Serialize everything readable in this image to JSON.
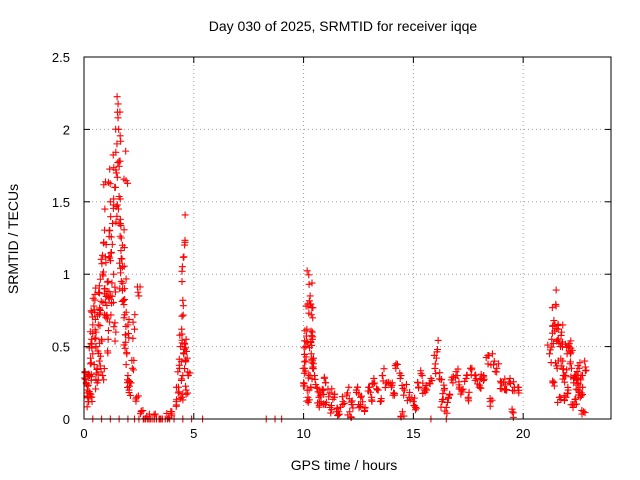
{
  "chart_data": {
    "type": "scatter",
    "title": "Day 030 of 2025, SRMTID for receiver iqqe",
    "xlabel": "GPS time / hours",
    "ylabel": "SRMTID / TECUs",
    "xlim": [
      0,
      24
    ],
    "ylim": [
      0,
      2.5
    ],
    "xticks": [
      0,
      5,
      10,
      15,
      20
    ],
    "yticks": [
      0,
      0.5,
      1,
      1.5,
      2,
      2.5
    ],
    "xtick_labels": [
      "0",
      "5",
      "10",
      "15",
      "20"
    ],
    "ytick_labels": [
      "0",
      "0.5",
      "1",
      "1.5",
      "2",
      "2.5"
    ],
    "grid": true,
    "marker": "+",
    "series": [
      {
        "name": "SRMTID",
        "color": "#ff0000",
        "x": [
          0.05,
          0.1,
          0.15,
          0.2,
          0.25,
          0.3,
          0.35,
          0.4,
          0.45,
          0.5,
          0.55,
          0.6,
          0.65,
          0.7,
          0.75,
          0.8,
          0.85,
          0.9,
          0.95,
          1.0,
          1.05,
          1.1,
          1.15,
          1.2,
          1.25,
          1.3,
          1.35,
          1.4,
          1.45,
          1.5,
          1.55,
          1.6,
          1.65,
          1.7,
          1.75,
          1.8,
          1.85,
          1.9,
          1.95,
          2.0,
          2.05,
          2.1,
          2.2,
          2.3,
          2.4,
          2.5,
          2.6,
          2.8,
          3.0,
          3.2,
          3.5,
          3.8,
          4.0,
          4.2,
          4.3,
          4.35,
          4.4,
          4.45,
          4.5,
          4.55,
          4.6,
          4.65,
          4.7,
          4.75,
          10.0,
          10.05,
          10.1,
          10.15,
          10.2,
          10.25,
          10.3,
          10.35,
          10.4,
          10.45,
          10.5,
          10.6,
          10.7,
          10.8,
          10.9,
          11.0,
          11.2,
          11.4,
          11.6,
          11.8,
          12.0,
          12.2,
          12.4,
          12.6,
          12.8,
          13.0,
          13.2,
          13.4,
          13.6,
          13.8,
          14.0,
          14.2,
          14.4,
          14.6,
          14.8,
          15.0,
          15.2,
          15.4,
          15.6,
          15.8,
          16.0,
          16.1,
          16.2,
          16.4,
          16.6,
          16.8,
          17.0,
          17.2,
          17.4,
          17.6,
          17.8,
          18.0,
          18.2,
          18.4,
          18.6,
          18.8,
          19.0,
          19.2,
          19.4,
          19.6,
          19.8,
          21.2,
          21.3,
          21.4,
          21.5,
          21.6,
          21.7,
          21.8,
          21.9,
          22.0,
          22.1,
          22.2,
          22.3,
          22.4,
          22.5,
          22.6,
          22.7,
          22.8
        ],
        "y": [
          0.32,
          0.25,
          0.18,
          0.12,
          0.3,
          0.42,
          0.55,
          0.65,
          0.78,
          0.86,
          0.5,
          0.35,
          0.65,
          0.92,
          0.75,
          0.55,
          1.0,
          1.22,
          1.45,
          1.08,
          0.85,
          0.95,
          1.3,
          1.5,
          1.15,
          1.35,
          1.52,
          1.6,
          1.72,
          1.9,
          2.08,
          1.78,
          1.52,
          1.25,
          1.05,
          0.82,
          0.72,
          0.58,
          0.45,
          0.3,
          0.2,
          0.25,
          0.35,
          0.62,
          0.15,
          0.85,
          0.05,
          0.0,
          0.0,
          0.0,
          0.0,
          0.0,
          0.05,
          0.12,
          0.22,
          0.35,
          0.5,
          0.62,
          0.82,
          1.12,
          1.22,
          0.55,
          0.42,
          0.3,
          0.25,
          0.35,
          0.5,
          0.62,
          0.78,
          0.93,
          0.85,
          0.72,
          0.55,
          0.42,
          0.3,
          0.22,
          0.15,
          0.12,
          0.2,
          0.1,
          0.08,
          0.15,
          0.05,
          0.12,
          0.18,
          0.1,
          0.2,
          0.15,
          0.08,
          0.22,
          0.28,
          0.2,
          0.3,
          0.25,
          0.22,
          0.35,
          0.28,
          0.2,
          0.15,
          0.12,
          0.25,
          0.3,
          0.2,
          0.28,
          0.38,
          0.48,
          0.32,
          0.2,
          0.15,
          0.25,
          0.3,
          0.2,
          0.28,
          0.35,
          0.3,
          0.22,
          0.3,
          0.38,
          0.45,
          0.35,
          0.25,
          0.2,
          0.28,
          0.22,
          0.18,
          0.45,
          0.55,
          0.68,
          0.78,
          0.62,
          0.5,
          0.4,
          0.3,
          0.45,
          0.52,
          0.35,
          0.25,
          0.3,
          0.2,
          0.15,
          0.3,
          0.4
        ],
        "extra_x": [
          0.15,
          0.25,
          0.4,
          0.6,
          0.7,
          0.85,
          1.0,
          1.1,
          1.2,
          1.35,
          1.45,
          1.6,
          1.75,
          1.85,
          2.0,
          4.45,
          4.55,
          4.65,
          10.1,
          10.2,
          10.3,
          10.4,
          11.0,
          11.5,
          12.5,
          13.5,
          14.5,
          15.5,
          16.5,
          17.5,
          18.5,
          19.5,
          21.35,
          21.55,
          21.75,
          21.95,
          22.15,
          22.35,
          22.55,
          22.75,
          0.35,
          0.55,
          0.95,
          1.25,
          1.5,
          1.7,
          1.9,
          4.5,
          10.25,
          10.35,
          11.2,
          12.1,
          13.1,
          14.1,
          15.1,
          16.3,
          17.1,
          18.1,
          19.1,
          21.45,
          21.65,
          21.85,
          22.05,
          22.25,
          22.45,
          22.65
        ],
        "extra_y": [
          0.2,
          0.3,
          0.45,
          0.25,
          0.4,
          0.3,
          0.7,
          0.55,
          0.85,
          1.0,
          0.6,
          1.35,
          1.2,
          0.9,
          0.65,
          0.15,
          0.45,
          0.2,
          0.4,
          0.15,
          0.3,
          0.6,
          0.25,
          0.05,
          0.1,
          0.12,
          0.05,
          0.2,
          0.08,
          0.15,
          0.12,
          0.05,
          0.25,
          0.35,
          0.6,
          0.15,
          0.45,
          0.1,
          0.35,
          0.05,
          0.15,
          0.6,
          0.9,
          0.8,
          1.4,
          0.95,
          1.85,
          0.3,
          0.2,
          0.45,
          0.18,
          0.05,
          0.15,
          0.18,
          0.08,
          0.12,
          0.22,
          0.28,
          0.25,
          0.65,
          0.15,
          0.3,
          0.2,
          0.1,
          0.28,
          0.18
        ],
        "zero_x": [
          0.4,
          0.8,
          1.2,
          1.6,
          2.0,
          2.3,
          2.5,
          2.7,
          2.9,
          3.1,
          3.3,
          3.5,
          3.7,
          3.9,
          4.1,
          4.5,
          4.9,
          5.4,
          8.3,
          8.7,
          9.0,
          15.8,
          16.5
        ]
      }
    ]
  }
}
